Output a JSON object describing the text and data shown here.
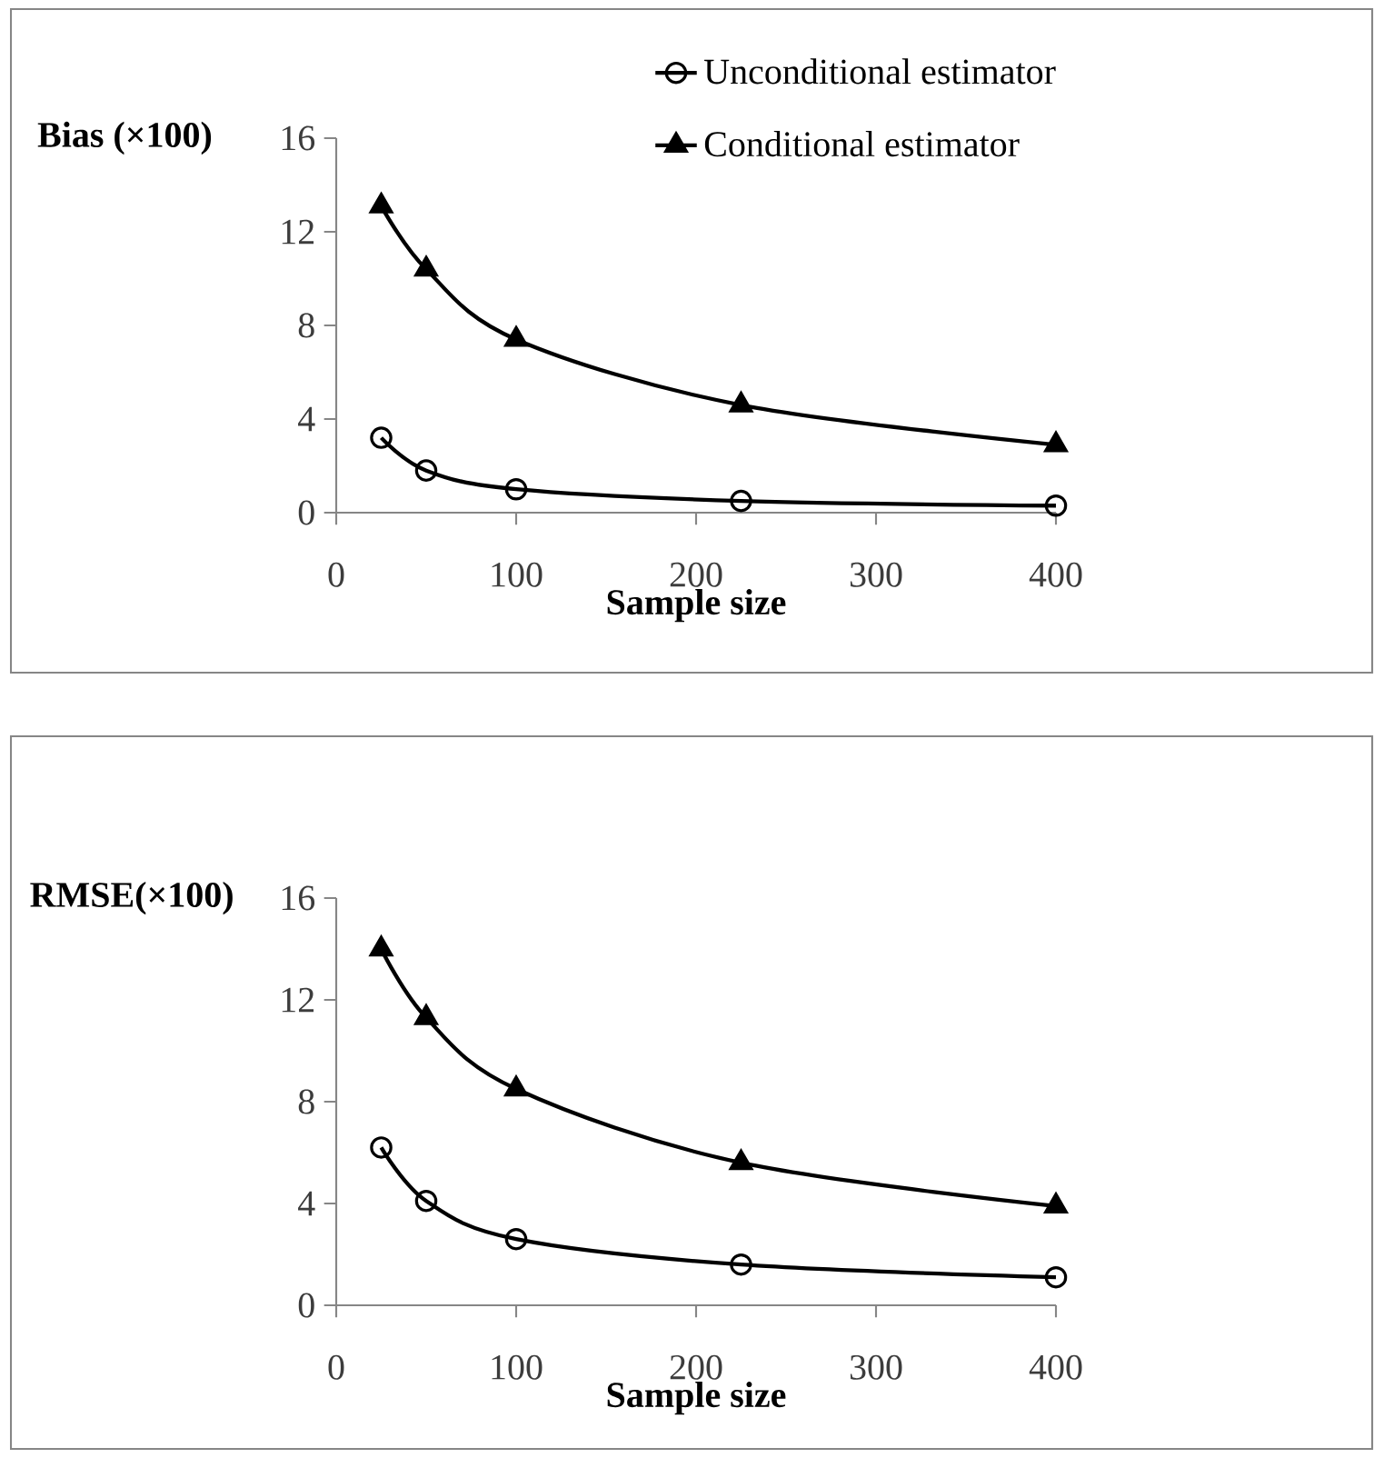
{
  "chart_data": [
    {
      "type": "line",
      "xlabel": "Sample size",
      "ylabel": "Bias (×100)",
      "xlim": [
        0,
        400
      ],
      "xticks": [
        0,
        100,
        200,
        300,
        400
      ],
      "ylim": [
        0,
        16
      ],
      "yticks": [
        0,
        4,
        8,
        12,
        16
      ],
      "legend": "top right",
      "series": [
        {
          "name": "Unconditional estimator",
          "color": "#000000",
          "marker": "circle",
          "x": [
            25,
            50,
            100,
            225,
            400
          ],
          "values": [
            3.2,
            1.8,
            1.0,
            0.5,
            0.3
          ]
        },
        {
          "name": "Conditional estimator",
          "color": "#000000",
          "marker": "triangle",
          "x": [
            25,
            50,
            100,
            225,
            400
          ],
          "values": [
            13.1,
            10.4,
            7.4,
            4.6,
            2.9
          ]
        }
      ]
    },
    {
      "type": "line",
      "xlabel": "Sample size",
      "ylabel": "RMSE(×100)",
      "xlim": [
        0,
        400
      ],
      "xticks": [
        0,
        100,
        200,
        300,
        400
      ],
      "ylim": [
        0,
        16
      ],
      "yticks": [
        0,
        4,
        8,
        12,
        16
      ],
      "series": [
        {
          "color": "#000000",
          "marker": "circle",
          "x": [
            25,
            50,
            100,
            225,
            400
          ],
          "values": [
            6.2,
            4.1,
            2.6,
            1.6,
            1.1
          ]
        },
        {
          "color": "#000000",
          "marker": "triangle",
          "x": [
            25,
            50,
            100,
            225,
            400
          ],
          "values": [
            14.0,
            11.3,
            8.5,
            5.6,
            3.9
          ]
        }
      ]
    }
  ]
}
